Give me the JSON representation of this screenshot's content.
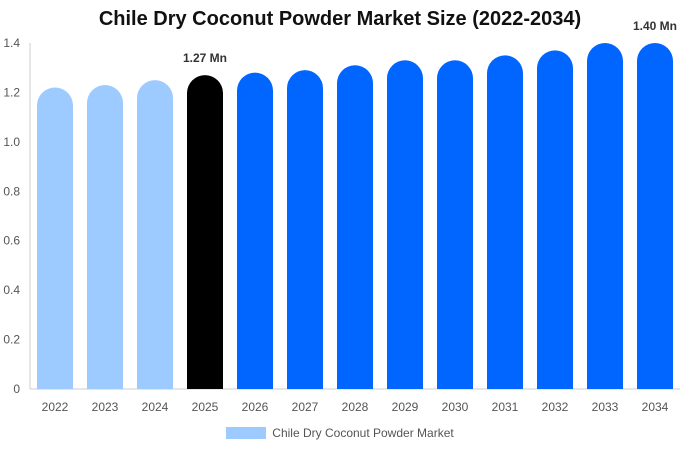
{
  "chart_data": {
    "type": "bar",
    "title": "Chile Dry Coconut Powder Market Size (2022-2034)",
    "categories": [
      "2022",
      "2023",
      "2024",
      "2025",
      "2026",
      "2027",
      "2028",
      "2029",
      "2030",
      "2031",
      "2032",
      "2033",
      "2034"
    ],
    "series": [
      {
        "name": "Chile Dry Coconut Powder Market",
        "values": [
          1.22,
          1.23,
          1.25,
          1.27,
          1.28,
          1.29,
          1.31,
          1.33,
          1.33,
          1.35,
          1.37,
          1.4,
          1.4
        ]
      }
    ],
    "ylim": [
      0,
      1.4
    ],
    "yticks": [
      "0",
      "0.2",
      "0.4",
      "0.6",
      "0.8",
      "1.0",
      "1.2",
      "1.4"
    ],
    "data_labels": [
      {
        "category": "2025",
        "text": "1.27 Mn"
      },
      {
        "category": "2034",
        "text": "1.40 Mn"
      }
    ],
    "xlabel": "",
    "ylabel": "",
    "grid": false,
    "legend_position": "bottom",
    "colors": {
      "historical": "#9ecbff",
      "current": "#000000",
      "forecast": "#0066ff",
      "axis": "#cccccc",
      "tick_text": "#555555",
      "label_text": "#333333"
    },
    "bar_color_groups": [
      "historical",
      "historical",
      "historical",
      "current",
      "forecast",
      "forecast",
      "forecast",
      "forecast",
      "forecast",
      "forecast",
      "forecast",
      "forecast",
      "forecast"
    ]
  }
}
